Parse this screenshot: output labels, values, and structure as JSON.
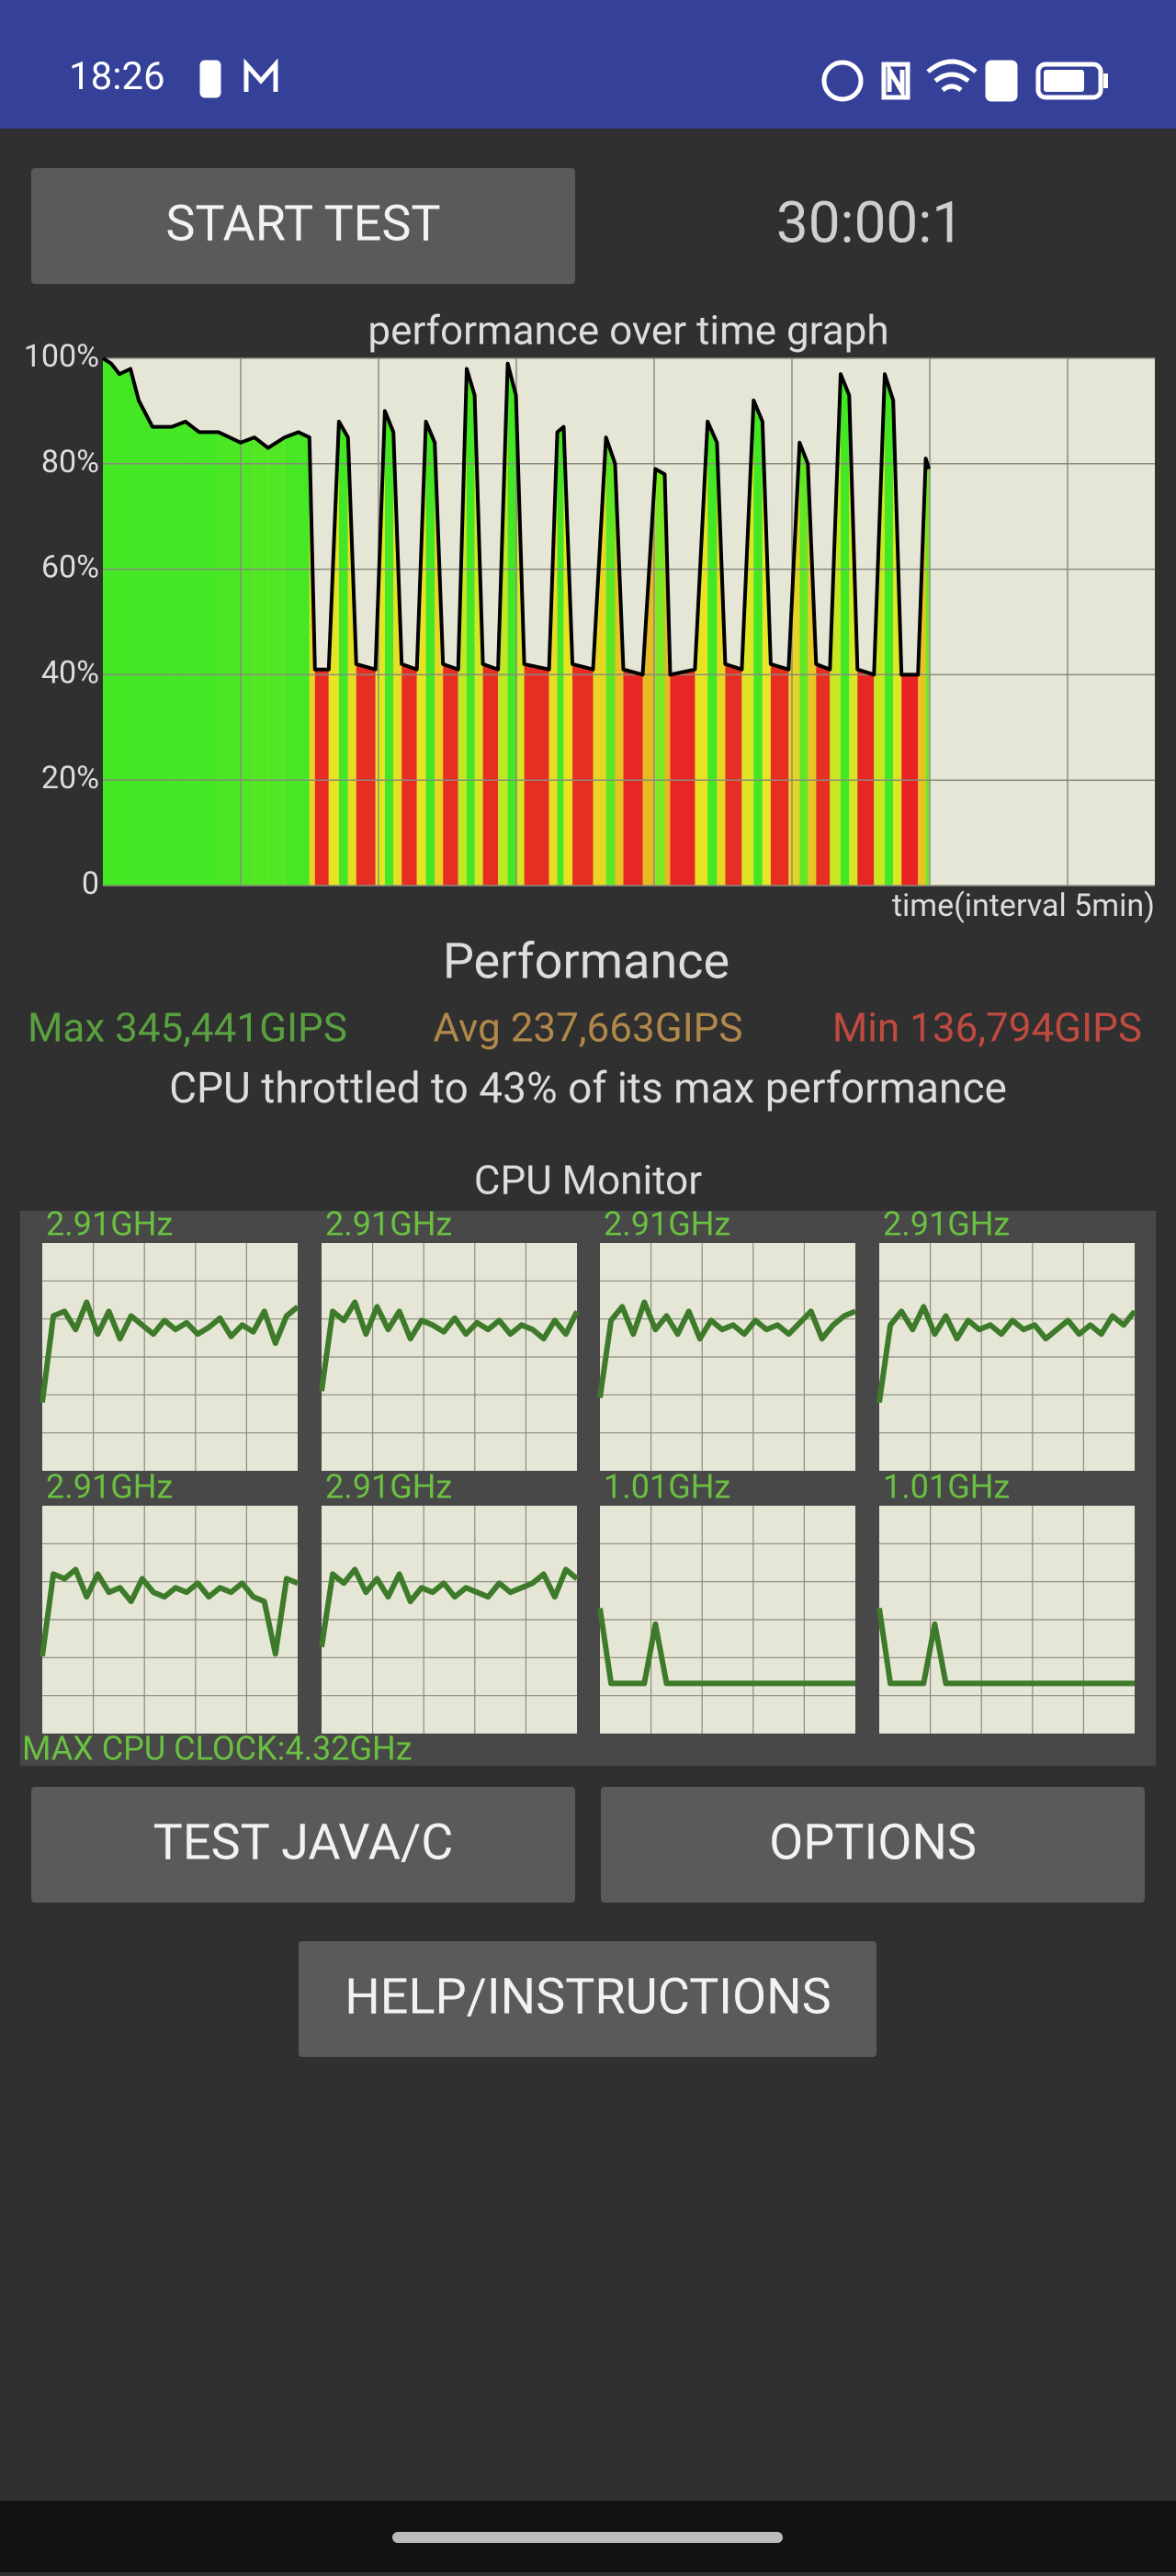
{
  "status_bar": {
    "time": "18:26"
  },
  "buttons": {
    "start": "START TEST",
    "test": "TEST JAVA/C",
    "options": "OPTIONS",
    "help": "HELP/INSTRUCTIONS"
  },
  "timer": "30:00:1",
  "chart_data": {
    "type": "line",
    "title": "performance over time graph",
    "x_label": "time(interval 5min)",
    "x": [
      0,
      0.3,
      0.6,
      1.0,
      1.3,
      1.8,
      2.5,
      3.0,
      3.5,
      4.2,
      5.0,
      5.5,
      6.0,
      6.6,
      7.1,
      7.5,
      7.7,
      8.2,
      8.57,
      8.9,
      9.2,
      9.9,
      10.24,
      10.55,
      10.85,
      11.4,
      11.73,
      12.05,
      12.35,
      12.9,
      13.21,
      13.5,
      13.8,
      14.35,
      14.7,
      15.0,
      15.3,
      16.2,
      16.5,
      16.73,
      17.05,
      17.8,
      18.27,
      18.6,
      18.9,
      19.6,
      20.06,
      20.4,
      20.6,
      21.5,
      21.96,
      22.3,
      22.6,
      23.2,
      23.63,
      23.95,
      24.25,
      24.9,
      25.3,
      25.6,
      25.9,
      26.4,
      26.79,
      27.1,
      27.4,
      28.0,
      28.39,
      28.7,
      29.0,
      29.6,
      29.88,
      30.0
    ],
    "values": [
      100,
      99,
      97,
      98,
      92,
      87,
      87,
      88,
      86,
      86,
      84,
      85,
      83,
      85,
      86,
      85,
      41,
      41,
      88,
      85,
      42,
      41,
      90,
      86,
      42,
      41,
      88,
      84,
      42,
      41,
      98,
      93,
      42,
      41,
      99,
      93,
      42,
      41,
      86,
      87,
      42,
      41,
      85,
      80,
      41,
      40,
      79,
      78,
      40,
      41,
      88,
      84,
      42,
      41,
      92,
      88,
      42,
      41,
      84,
      80,
      42,
      41,
      97,
      93,
      41,
      40,
      97,
      92,
      40,
      40,
      81,
      79
    ],
    "color": "#000000",
    "xlim": [
      0,
      38.2
    ],
    "ylim": [
      0,
      100
    ],
    "yticks": [
      {
        "value": 100,
        "label": "100%"
      },
      {
        "value": 80,
        "label": "80%"
      },
      {
        "value": 60,
        "label": "60%"
      },
      {
        "value": 40,
        "label": "40%"
      },
      {
        "value": 20,
        "label": "20%"
      },
      0
    ],
    "grid": true
  },
  "performance": {
    "title": "Performance",
    "max": "Max 345,441GIPS",
    "avg": "Avg 237,663GIPS",
    "min": "Min 136,794GIPS",
    "summary": "CPU throttled to 43% of its max performance"
  },
  "cpu_monitor": {
    "title": "CPU Monitor",
    "max_clock": "MAX CPU CLOCK:4.32GHz",
    "ylim": [
      0,
      100
    ],
    "color": "#3d7a2a",
    "cores": [
      {
        "label": "2.91GHz",
        "values": [
          30,
          68,
          70,
          62,
          74,
          60,
          70,
          58,
          68,
          64,
          60,
          66,
          62,
          65,
          60,
          63,
          67,
          59,
          64,
          61,
          70,
          56,
          68,
          72
        ]
      },
      {
        "label": "2.91GHz",
        "values": [
          35,
          70,
          66,
          74,
          60,
          72,
          62,
          70,
          58,
          66,
          64,
          61,
          67,
          60,
          65,
          62,
          66,
          60,
          64,
          62,
          58,
          66,
          60,
          70
        ]
      },
      {
        "label": "2.91GHz",
        "values": [
          32,
          66,
          72,
          60,
          74,
          62,
          68,
          60,
          70,
          58,
          66,
          62,
          64,
          60,
          66,
          62,
          64,
          60,
          65,
          70,
          58,
          64,
          68,
          70
        ]
      },
      {
        "label": "2.91GHz",
        "values": [
          30,
          64,
          70,
          62,
          72,
          60,
          68,
          58,
          66,
          62,
          64,
          60,
          66,
          62,
          64,
          58,
          62,
          66,
          60,
          64,
          60,
          68,
          64,
          70
        ]
      },
      {
        "label": "2.91GHz",
        "values": [
          34,
          70,
          68,
          72,
          60,
          70,
          62,
          64,
          58,
          68,
          62,
          60,
          64,
          62,
          66,
          60,
          64,
          62,
          66,
          60,
          58,
          35,
          68,
          66
        ]
      },
      {
        "label": "2.91GHz",
        "values": [
          38,
          70,
          66,
          72,
          62,
          68,
          60,
          70,
          58,
          64,
          62,
          66,
          60,
          64,
          62,
          60,
          66,
          62,
          64,
          66,
          70,
          60,
          72,
          68
        ]
      },
      {
        "label": "1.01GHz",
        "values": [
          55,
          22,
          22,
          22,
          22,
          48,
          22,
          22,
          22,
          22,
          22,
          22,
          22,
          22,
          22,
          22,
          22,
          22,
          22,
          22,
          22,
          22,
          22,
          22
        ]
      },
      {
        "label": "1.01GHz",
        "values": [
          55,
          22,
          22,
          22,
          22,
          48,
          22,
          22,
          22,
          22,
          22,
          22,
          22,
          22,
          22,
          22,
          22,
          22,
          22,
          22,
          22,
          22,
          22,
          22
        ]
      }
    ]
  }
}
